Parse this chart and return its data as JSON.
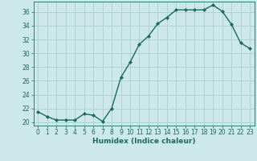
{
  "x": [
    0,
    1,
    2,
    3,
    4,
    5,
    6,
    7,
    8,
    9,
    10,
    11,
    12,
    13,
    14,
    15,
    16,
    17,
    18,
    19,
    20,
    21,
    22,
    23
  ],
  "y": [
    21.5,
    20.8,
    20.3,
    20.3,
    20.3,
    21.2,
    21.0,
    20.1,
    22.0,
    26.5,
    28.7,
    31.3,
    32.5,
    34.3,
    35.2,
    36.3,
    36.3,
    36.3,
    36.3,
    37.0,
    36.1,
    34.2,
    31.5,
    30.7
  ],
  "line_color": "#1a6b5a",
  "marker": "D",
  "marker_size": 2.0,
  "bg_color": "#cce8e8",
  "grid_color": "#aacece",
  "xlabel": "Humidex (Indice chaleur)",
  "ylim": [
    19.5,
    37.5
  ],
  "xlim": [
    -0.5,
    23.5
  ],
  "yticks": [
    20,
    22,
    24,
    26,
    28,
    30,
    32,
    34,
    36
  ],
  "xticks": [
    0,
    1,
    2,
    3,
    4,
    5,
    6,
    7,
    8,
    9,
    10,
    11,
    12,
    13,
    14,
    15,
    16,
    17,
    18,
    19,
    20,
    21,
    22,
    23
  ],
  "xlabel_fontsize": 6.5,
  "tick_fontsize": 5.5,
  "line_width": 1.0
}
